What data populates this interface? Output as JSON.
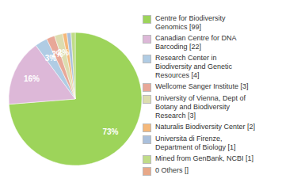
{
  "chart_data": {
    "type": "pie",
    "categories": [
      "Centre for Biodiversity\nGenomics [99]",
      "Canadian Centre for DNA\nBarcoding [22]",
      "Research Center in\nBiodiversity and Genetic\nResources [4]",
      "Wellcome Sanger Institute [3]",
      "University of Vienna, Dept of\nBotany and Biodiversity\nResearch [3]",
      "Naturalis Biodiversity Center [2]",
      "Universita di Firenze,\nDepartment of Biology [1]",
      "Mined from GenBank, NCBI [1]",
      "0 Others []"
    ],
    "values": [
      73,
      16,
      3,
      2,
      2,
      1,
      1,
      1,
      0
    ],
    "value_labels": [
      "73%",
      "16%",
      "3%",
      "2%",
      "2%",
      null,
      null,
      null,
      null
    ],
    "data_labels": true,
    "colors": [
      "#9dd45a",
      "#ddb8d8",
      "#b0cce4",
      "#e8a898",
      "#ddddb0",
      "#f5b87a",
      "#aac0dc",
      "#c0dc88",
      "#e8a888"
    ],
    "legend": "right"
  }
}
